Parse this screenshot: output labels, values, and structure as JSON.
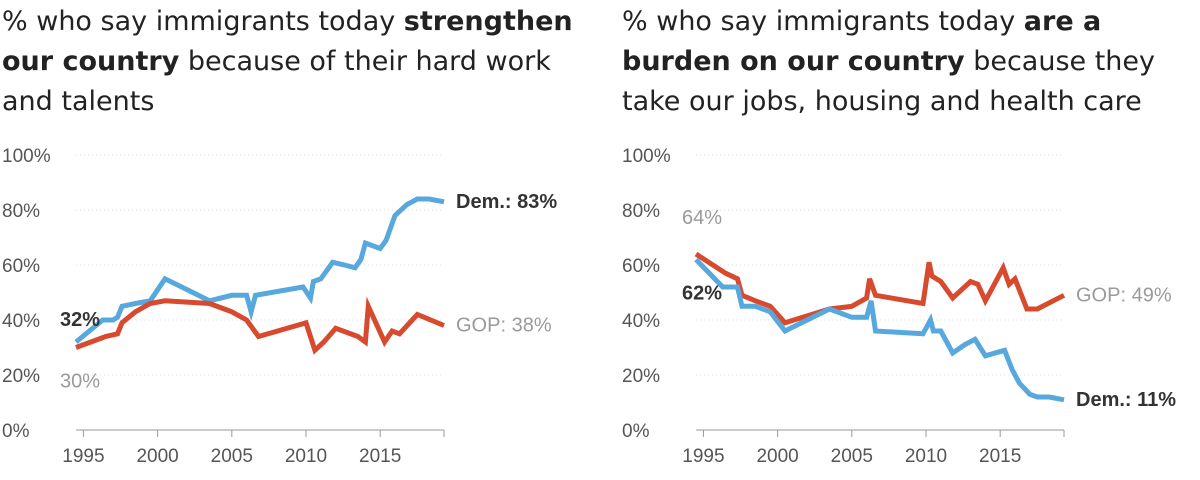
{
  "colors": {
    "dem": "#57a8dc",
    "gop": "#d74a2e",
    "axis": "#999999",
    "gop_label": "#9a9a9a",
    "dem_label": "#333333"
  },
  "chart_data": [
    {
      "type": "line",
      "title_parts": [
        {
          "text": "% who say immigrants today ",
          "bold": false
        },
        {
          "text": "strengthen our country",
          "bold": true
        },
        {
          "text": " because of their hard work and talents",
          "bold": false
        }
      ],
      "y_ticks": [
        "0%",
        "20%",
        "40%",
        "60%",
        "80%",
        "100%"
      ],
      "x_ticks": [
        "1995",
        "2000",
        "2005",
        "2010",
        "2015"
      ],
      "x_tick_values": [
        1995,
        2000,
        2005,
        2010,
        2015
      ],
      "xlim": [
        1994.5,
        2019.3
      ],
      "ylim": [
        0,
        100
      ],
      "series": [
        {
          "key": "dem",
          "x": [
            1994.5,
            1996.3,
            1997.0,
            1997.3,
            1997.6,
            1998.5,
            1999.5,
            2000.5,
            2002.0,
            2003.5,
            2005.0,
            2006.0,
            2006.3,
            2006.6,
            2009.8,
            2010.3,
            2010.5,
            2011.0,
            2011.8,
            2012.6,
            2013.3,
            2013.7,
            2014.0,
            2015.0,
            2015.4,
            2016.0,
            2016.8,
            2017.5,
            2018.3,
            2019.3
          ],
          "y": [
            32,
            40,
            40,
            41,
            45,
            46,
            47,
            55,
            51,
            47,
            49,
            49,
            43,
            49,
            52,
            48,
            54,
            55,
            61,
            60,
            59,
            62,
            68,
            66,
            69,
            78,
            82,
            84,
            84,
            83
          ]
        },
        {
          "key": "gop",
          "x": [
            1994.5,
            1996.5,
            1997.3,
            1997.6,
            1998.5,
            1999.5,
            2000.5,
            2003.5,
            2005.0,
            2006.0,
            2006.8,
            2010.0,
            2010.6,
            2011.2,
            2012.0,
            2013.5,
            2014.0,
            2014.2,
            2015.3,
            2015.8,
            2016.3,
            2017.5,
            2019.3
          ],
          "y": [
            30,
            34,
            35,
            39,
            43,
            46,
            47,
            46,
            43,
            40,
            34,
            39,
            29,
            32,
            37,
            34,
            32,
            45,
            32,
            36,
            35,
            42,
            38
          ]
        }
      ],
      "annotations": [
        {
          "key": "gop-start",
          "text": "30%",
          "bold": false,
          "color": "gop_label"
        },
        {
          "key": "dem-start",
          "text": "32%",
          "bold": true,
          "color": "dem_label"
        },
        {
          "key": "dem-end",
          "text": "Dem.: 83%",
          "bold": true,
          "color": "dem_label"
        },
        {
          "key": "gop-end",
          "text": "GOP: 38%",
          "bold": false,
          "color": "gop_label"
        }
      ]
    },
    {
      "type": "line",
      "title_parts": [
        {
          "text": "% who say immigrants today ",
          "bold": false
        },
        {
          "text": "are a burden on our country",
          "bold": true
        },
        {
          "text": " because they take our jobs, housing and health care",
          "bold": false
        }
      ],
      "y_ticks": [
        "0%",
        "20%",
        "40%",
        "60%",
        "80%",
        "100%"
      ],
      "x_ticks": [
        "1995",
        "2000",
        "2005",
        "2010",
        "2015"
      ],
      "x_tick_values": [
        1995,
        2000,
        2005,
        2010,
        2015
      ],
      "xlim": [
        1994.5,
        2019.3
      ],
      "ylim": [
        0,
        100
      ],
      "series": [
        {
          "key": "gop",
          "x": [
            1994.5,
            1996.5,
            1997.3,
            1997.6,
            1998.5,
            1999.5,
            2000.5,
            2003.5,
            2005.0,
            2006.0,
            2006.2,
            2006.6,
            2009.8,
            2010.2,
            2010.4,
            2011.0,
            2011.8,
            2013.0,
            2013.5,
            2014.0,
            2015.2,
            2015.6,
            2016.0,
            2016.8,
            2017.5,
            2019.3
          ],
          "y": [
            64,
            57,
            55,
            49,
            47,
            45,
            39,
            44,
            45,
            48,
            55,
            49,
            46,
            61,
            56,
            54,
            48,
            54,
            53,
            47,
            59,
            53,
            55,
            44,
            44,
            49
          ]
        },
        {
          "key": "dem",
          "x": [
            1994.5,
            1996.3,
            1997.3,
            1997.6,
            1998.5,
            1999.5,
            2000.5,
            2003.5,
            2005.0,
            2006.0,
            2006.3,
            2006.6,
            2009.8,
            2010.3,
            2010.5,
            2011.0,
            2011.8,
            2012.6,
            2013.3,
            2014.0,
            2015.3,
            2015.8,
            2016.3,
            2017.0,
            2017.5,
            2018.3,
            2019.3
          ],
          "y": [
            62,
            52,
            52,
            45,
            45,
            43,
            36,
            44,
            41,
            41,
            47,
            36,
            35,
            40,
            36,
            36,
            28,
            31,
            33,
            27,
            29,
            22,
            17,
            13,
            12,
            12,
            11
          ]
        }
      ],
      "annotations": [
        {
          "key": "gop-start",
          "text": "64%",
          "bold": false,
          "color": "gop_label"
        },
        {
          "key": "dem-start",
          "text": "62%",
          "bold": true,
          "color": "dem_label"
        },
        {
          "key": "gop-end",
          "text": "GOP: 49%",
          "bold": false,
          "color": "gop_label"
        },
        {
          "key": "dem-end",
          "text": "Dem.: 11%",
          "bold": true,
          "color": "dem_label"
        }
      ]
    }
  ]
}
